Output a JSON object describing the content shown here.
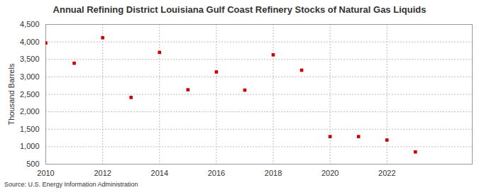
{
  "chart_data": {
    "type": "scatter",
    "title": "Annual Refining District Louisiana Gulf Coast Refinery Stocks of Natural Gas Liquids",
    "source": "Source: U.S. Energy Information Administration",
    "y_label": "Thousand Barrels",
    "x": [
      2010,
      2011,
      2012,
      2013,
      2014,
      2015,
      2016,
      2017,
      2018,
      2019,
      2020,
      2021,
      2022,
      2023
    ],
    "values": [
      3970,
      3390,
      4120,
      2410,
      3700,
      2630,
      3140,
      2620,
      3630,
      3190,
      1290,
      1290,
      1190,
      850
    ],
    "color": "#cc0000",
    "marker": "square",
    "xlim": [
      2010,
      2025
    ],
    "xticks": [
      2010,
      2012,
      2014,
      2016,
      2018,
      2020,
      2022
    ],
    "ylim": [
      500,
      4500
    ],
    "yticks": [
      500,
      {
        "value": 1000,
        "label": "1,000"
      },
      {
        "value": 1500,
        "label": "1,500"
      },
      {
        "value": 2000,
        "label": "2,000"
      },
      {
        "value": 2500,
        "label": "2,500"
      },
      {
        "value": 3000,
        "label": "3,000"
      },
      {
        "value": 3500,
        "label": "3,500"
      },
      {
        "value": 4000,
        "label": "4,000"
      },
      {
        "value": 4500,
        "label": "4,500"
      }
    ],
    "grid": true
  }
}
